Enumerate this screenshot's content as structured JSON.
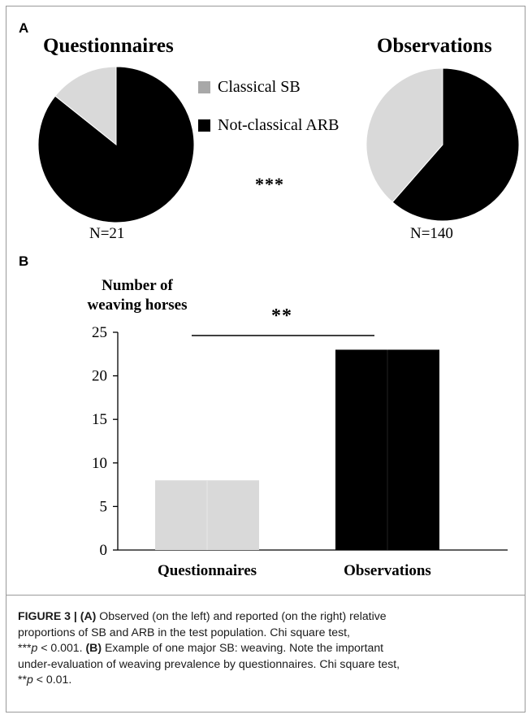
{
  "figure": {
    "panel_a_letter": "A",
    "panel_b_letter": "B",
    "caption": {
      "label": "FIGURE 3 |",
      "a_marker": "(A)",
      "a_text": " Observed (on the left) and reported (on the right) relative",
      "line2": "proportions of SB and ARB in the test population. Chi square test,",
      "line3_sig": "***",
      "line3_p": "p",
      "line3_rest": " < 0.001.",
      "b_marker": "(B)",
      "b_text": " Example of one major SB: weaving. Note the important",
      "line4": "under-evaluation of weaving prevalence by questionnaires. Chi square test,",
      "line5_sig": "**",
      "line5_p": "p",
      "line5_rest": " < 0.01."
    }
  },
  "chart_data": [
    {
      "type": "pie",
      "panel": "A",
      "legend": {
        "placement": "center",
        "entries": [
          "Classical SB",
          "Not-classical ARB"
        ]
      },
      "significance": "***",
      "pies": [
        {
          "title": "Questionnaires",
          "n_label": "N=21",
          "slices": [
            {
              "label": "Classical SB",
              "value": 3,
              "color": "#d9d9d9"
            },
            {
              "label": "Not-classical ARB",
              "value": 18,
              "color": "#000000"
            }
          ]
        },
        {
          "title": "Observations",
          "n_label": "N=140",
          "slices": [
            {
              "label": "Classical SB",
              "value": 54,
              "color": "#d9d9d9"
            },
            {
              "label": "Not-classical ARB",
              "value": 86,
              "color": "#000000"
            }
          ]
        }
      ]
    },
    {
      "type": "bar",
      "panel": "B",
      "categories": [
        "Questionnaires",
        "Observations"
      ],
      "values": [
        8,
        23
      ],
      "colors": [
        "#d9d9d9",
        "#000000"
      ],
      "ylabel": "Number of weaving horses",
      "ylabel_lines": [
        "Number of",
        "weaving horses"
      ],
      "ylim": [
        0,
        25
      ],
      "yticks": [
        0,
        5,
        10,
        15,
        20,
        25
      ],
      "grid": false,
      "significance": "**"
    }
  ]
}
